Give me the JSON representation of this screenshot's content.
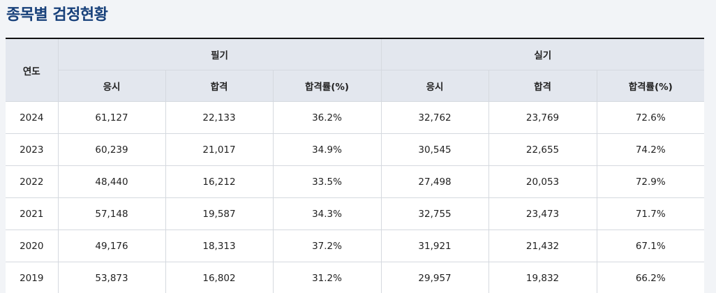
{
  "title": "종목별 검정현황",
  "table": {
    "year_header": "연도",
    "groups": [
      "필기",
      "실기"
    ],
    "sub_headers": [
      "응시",
      "합격",
      "합격률(%)",
      "응시",
      "합격",
      "합격률(%)"
    ],
    "rows": [
      [
        "2024",
        "61,127",
        "22,133",
        "36.2%",
        "32,762",
        "23,769",
        "72.6%"
      ],
      [
        "2023",
        "60,239",
        "21,017",
        "34.9%",
        "30,545",
        "22,655",
        "74.2%"
      ],
      [
        "2022",
        "48,440",
        "16,212",
        "33.5%",
        "27,498",
        "20,053",
        "72.9%"
      ],
      [
        "2021",
        "57,148",
        "19,587",
        "34.3%",
        "32,755",
        "23,473",
        "71.7%"
      ],
      [
        "2020",
        "49,176",
        "18,313",
        "37.2%",
        "31,921",
        "21,432",
        "67.1%"
      ],
      [
        "2019",
        "53,873",
        "16,802",
        "31.2%",
        "29,957",
        "19,832",
        "66.2%"
      ]
    ]
  }
}
